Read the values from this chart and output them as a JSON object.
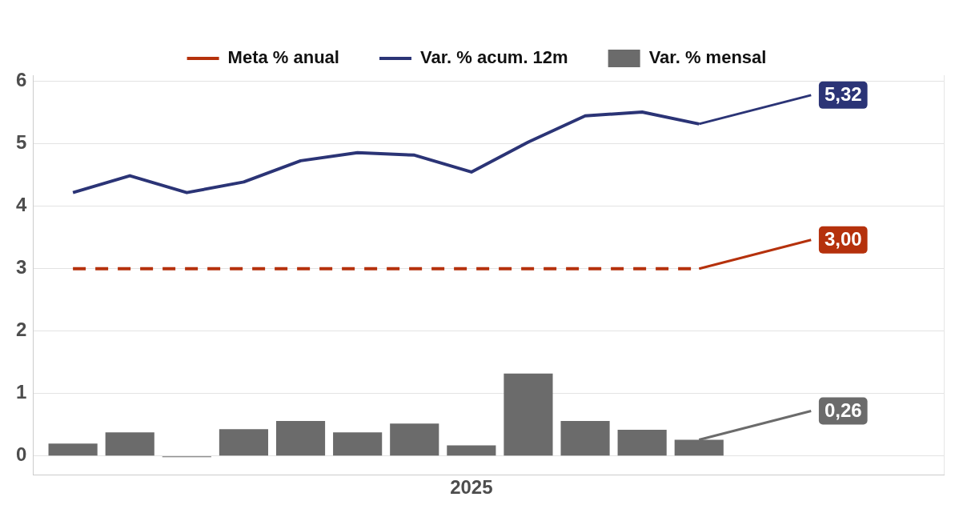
{
  "chart_data": {
    "type": "bar",
    "categories": [
      null,
      null,
      null,
      null,
      null,
      null,
      null,
      "2025",
      null,
      null,
      null,
      null
    ],
    "series": [
      {
        "name": "Meta % anual",
        "type": "line",
        "color": "#b5310c",
        "line_style": "dashed",
        "values": [
          3,
          3,
          3,
          3,
          3,
          3,
          3,
          3,
          3,
          3,
          3,
          3
        ],
        "value_labels": [
          null,
          null,
          null,
          null,
          null,
          null,
          null,
          null,
          null,
          null,
          null,
          "3,00"
        ]
      },
      {
        "name": "Var. % acum. 12m",
        "type": "line",
        "color": "#2b3476",
        "line_style": "solid",
        "values": [
          4.22,
          4.49,
          4.22,
          4.39,
          4.73,
          4.86,
          4.82,
          4.55,
          5.03,
          5.45,
          5.51,
          5.32
        ],
        "value_labels": [
          null,
          null,
          null,
          null,
          null,
          null,
          null,
          null,
          null,
          null,
          null,
          "5,32"
        ]
      },
      {
        "name": "Var. % mensal",
        "color": "#6b6b6b",
        "values": [
          0.2,
          0.38,
          -0.02,
          0.43,
          0.56,
          0.38,
          0.52,
          0.17,
          1.32,
          0.56,
          0.42,
          0.26
        ],
        "value_labels": [
          null,
          null,
          null,
          null,
          null,
          null,
          null,
          null,
          null,
          null,
          null,
          "0,26"
        ]
      }
    ],
    "ylim": [
      -0.3,
      6.1
    ],
    "yticks": [
      0,
      1,
      2,
      3,
      4,
      5,
      6
    ],
    "grid": true,
    "legend": "top",
    "marker": "none"
  }
}
